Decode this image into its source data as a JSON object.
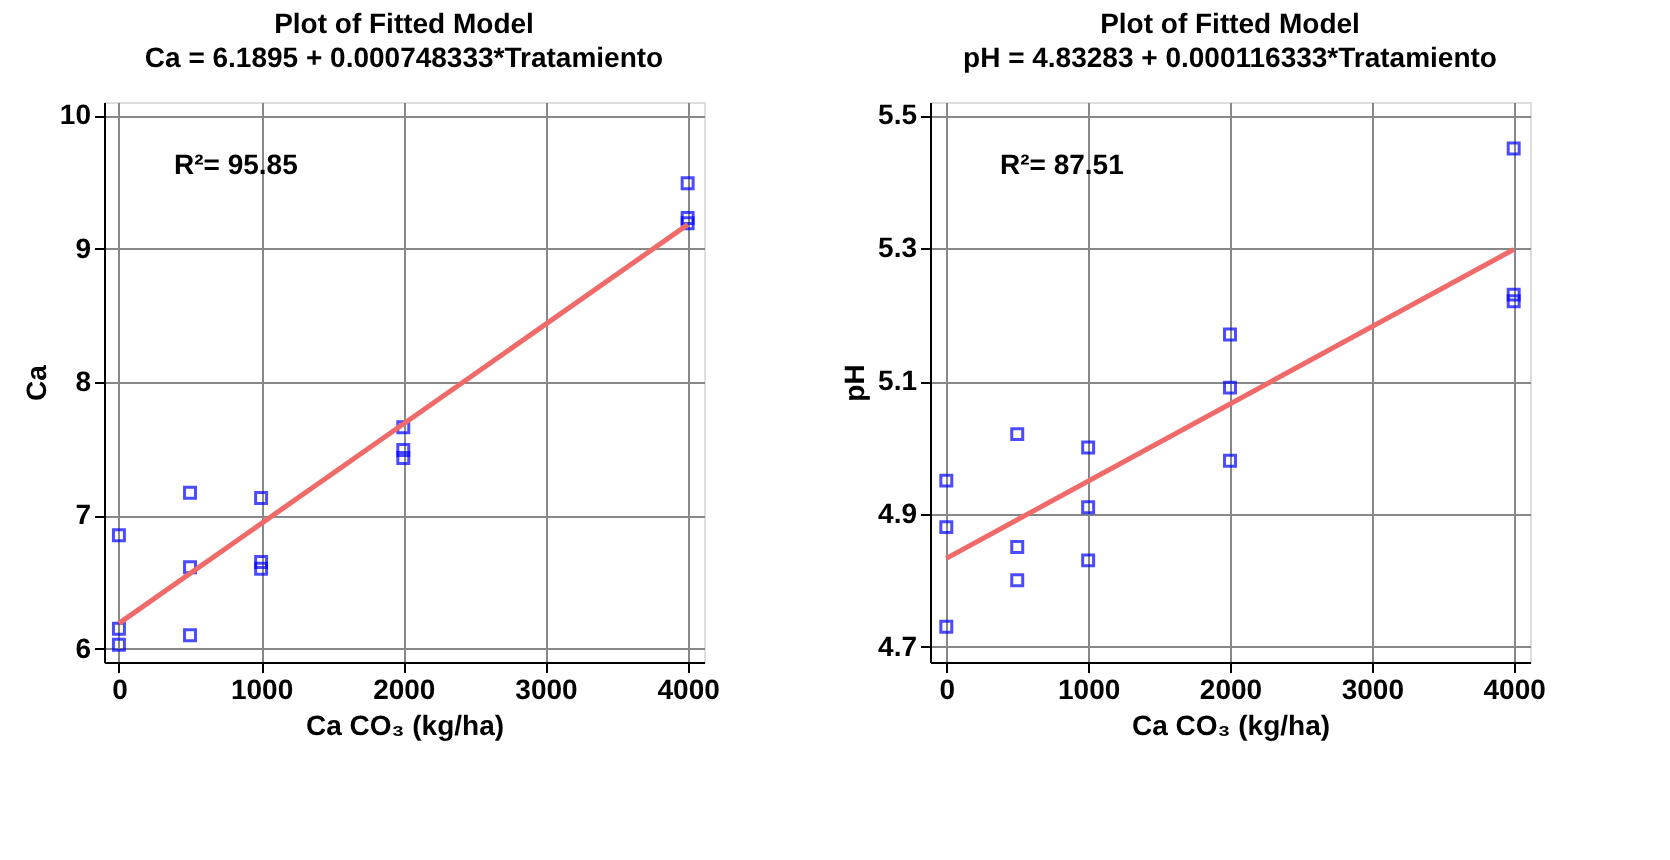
{
  "chart_data": [
    {
      "type": "scatter",
      "title": "Plot of Fitted Model",
      "subtitle": "Ca = 6.1895 + 0.000748333*Tratamiento",
      "xlabel": "Ca CO₃ (kg/ha)",
      "ylabel": "Ca",
      "annotations": [
        "R²= 95.85"
      ],
      "xlim": [
        -105,
        4115
      ],
      "xticks": [
        0,
        1000,
        2000,
        3000,
        4000
      ],
      "ylim": [
        5.9,
        10.1
      ],
      "yticks": [
        6,
        7,
        8,
        9,
        10
      ],
      "grid": true,
      "legend": false,
      "series": [
        {
          "type": "scatter",
          "color": "#0000ff",
          "marker": "square",
          "x": [
            0,
            0,
            0,
            500,
            500,
            500,
            1000,
            1000,
            1000,
            2000,
            2000,
            2000,
            4000,
            4000,
            4000
          ],
          "values": [
            6.85,
            6.15,
            6.03,
            7.17,
            6.61,
            6.1,
            7.13,
            6.65,
            6.6,
            7.66,
            7.49,
            7.43,
            9.49,
            9.23,
            9.19
          ]
        },
        {
          "type": "line",
          "color": "#f06a6a",
          "x": [
            0,
            4000
          ],
          "values": [
            6.19,
            9.18
          ]
        }
      ]
    },
    {
      "type": "scatter",
      "title": "Plot of Fitted Model",
      "subtitle": "pH = 4.83283 + 0.000116333*Tratamiento",
      "xlabel": "Ca CO₃ (kg/ha)",
      "ylabel": "pH",
      "annotations": [
        "R²= 87.51"
      ],
      "xlim": [
        -115,
        4115
      ],
      "xticks": [
        0,
        1000,
        2000,
        3000,
        4000
      ],
      "ylim": [
        4.677,
        5.52
      ],
      "yticks": [
        4.7,
        4.9,
        5.1,
        5.3,
        5.5
      ],
      "grid": true,
      "legend": false,
      "series": [
        {
          "type": "scatter",
          "color": "#0000ff",
          "marker": "square",
          "x": [
            0,
            0,
            0,
            500,
            500,
            500,
            1000,
            1000,
            1000,
            2000,
            2000,
            2000,
            4000,
            4000,
            4000
          ],
          "values": [
            4.95,
            4.88,
            4.73,
            5.02,
            4.85,
            4.8,
            5.0,
            4.91,
            4.83,
            5.17,
            5.09,
            4.98,
            5.45,
            5.23,
            5.22
          ]
        },
        {
          "type": "line",
          "color": "#f06a6a",
          "x": [
            0,
            4000
          ],
          "values": [
            4.833,
            5.298
          ]
        }
      ]
    }
  ]
}
